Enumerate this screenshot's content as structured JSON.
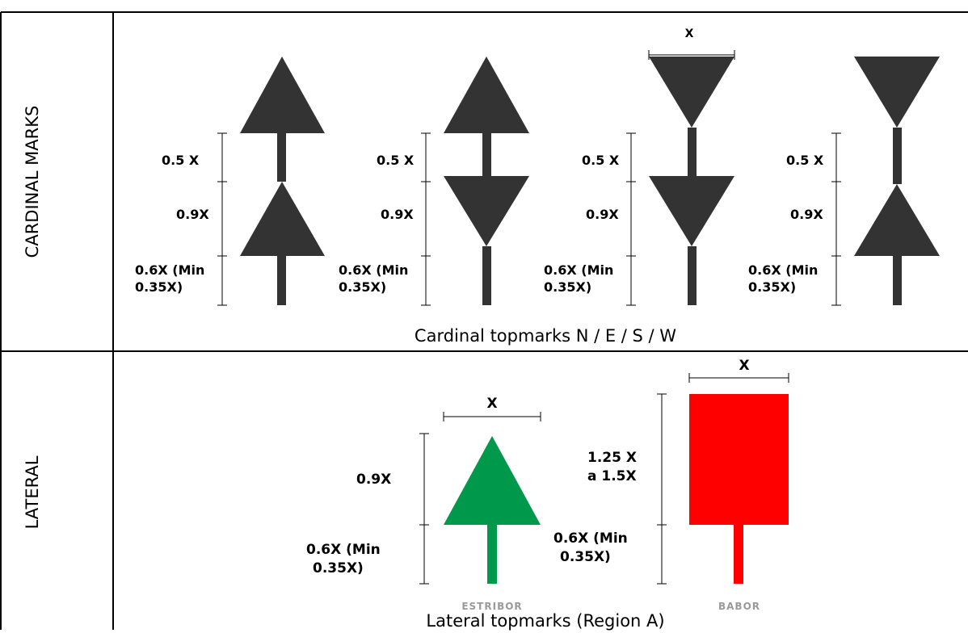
{
  "rows": {
    "cardinal": {
      "label": "CARDINAL MARKS",
      "caption": "Cardinal topmarks N / E / S / W",
      "width_label": "X",
      "marks": [
        {
          "label_a": "0.5 X",
          "label_b": "0.9X",
          "label_c_line1": "0.6X (Min",
          "label_c_line2": "0.35X)"
        },
        {
          "label_a": "0.5 X",
          "label_b": "0.9X",
          "label_c_line1": "0.6X (Min",
          "label_c_line2": "0.35X)"
        },
        {
          "label_a": "0.5 X",
          "label_b": "0.9X",
          "label_c_line1": "0.6X (Min",
          "label_c_line2": "0.35X)"
        },
        {
          "label_a": "0.5 X",
          "label_b": "0.9X",
          "label_c_line1": "0.6X (Min",
          "label_c_line2": "0.35X)"
        }
      ]
    },
    "lateral": {
      "label": "LATERAL",
      "caption": "Lateral topmarks (Region A)",
      "starboard": {
        "width_label": "X",
        "height_label": "0.9X",
        "pole_line1": "0.6X (Min",
        "pole_line2": "0.35X)",
        "under_label": "ESTRIBOR",
        "color": "#00984a"
      },
      "port": {
        "width_label": "X",
        "height_line1": "1.25 X",
        "height_line2": "a 1.5X",
        "pole_line1": "0.6X (Min",
        "pole_line2": "0.35X)",
        "under_label": "BABOR",
        "color": "#ff0000"
      }
    }
  },
  "colors": {
    "cardinal": "#333333",
    "green": "#00984a",
    "red": "#ff0000",
    "grid": "#000000"
  }
}
